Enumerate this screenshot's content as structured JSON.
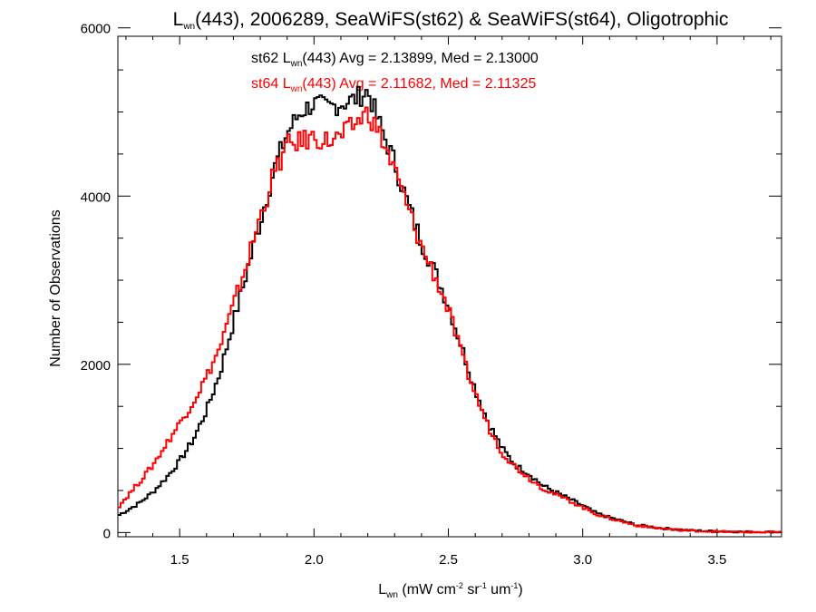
{
  "chart_data": {
    "type": "line",
    "step": true,
    "title": {
      "pre": "L",
      "sub": "wn",
      "post": "(443), 2006289, SeaWiFS(st62) & SeaWiFS(st64), Oligotrophic"
    },
    "ylabel": "Number of Observations",
    "xlabel": {
      "pre": "L",
      "sub": "wn",
      "mid1": " (mW cm",
      "sup1": "-2",
      "mid2": " sr",
      "sup2": "-1",
      "mid3": " um",
      "sup3": "-1",
      "post": ")"
    },
    "xlim": [
      1.27,
      3.74
    ],
    "ylim": [
      -50,
      5900
    ],
    "x_ticks": [
      {
        "value": 1.5,
        "label": "1.5"
      },
      {
        "value": 2.0,
        "label": "2.0"
      },
      {
        "value": 2.5,
        "label": "2.5"
      },
      {
        "value": 3.0,
        "label": "3.0"
      },
      {
        "value": 3.5,
        "label": "3.5"
      }
    ],
    "y_ticks": [
      {
        "value": 0,
        "label": "0"
      },
      {
        "value": 2000,
        "label": "2000"
      },
      {
        "value": 4000,
        "label": "4000"
      },
      {
        "value": 6000,
        "label": "6000"
      }
    ],
    "grid": false,
    "annotations": [
      {
        "pre": "st62 L",
        "sub": "wn",
        "post": "(443) Avg = 2.13899, Med = 2.13000",
        "color": "#000000"
      },
      {
        "pre": "st64 L",
        "sub": "wn",
        "post": "(443) Avg = 2.11682, Med = 2.11325",
        "color": "#ff0000"
      }
    ],
    "series": [
      {
        "color": "#000000",
        "x": [
          1.27,
          1.35,
          1.4,
          1.45,
          1.5,
          1.55,
          1.6,
          1.65,
          1.7,
          1.75,
          1.8,
          1.85,
          1.9,
          1.95,
          2.0,
          2.05,
          2.1,
          2.15,
          2.2,
          2.25,
          2.3,
          2.35,
          2.4,
          2.45,
          2.5,
          2.55,
          2.6,
          2.65,
          2.7,
          2.75,
          2.8,
          2.85,
          2.9,
          2.95,
          3.0,
          3.05,
          3.1,
          3.2,
          3.3,
          3.4,
          3.5,
          3.6,
          3.74
        ],
        "y": [
          200,
          350,
          480,
          650,
          850,
          1100,
          1450,
          1900,
          2500,
          3100,
          3700,
          4300,
          4750,
          5000,
          5100,
          5050,
          5100,
          5150,
          5250,
          4800,
          4400,
          3900,
          3450,
          3100,
          2700,
          2200,
          1700,
          1300,
          1000,
          800,
          700,
          560,
          480,
          400,
          320,
          230,
          180,
          90,
          50,
          25,
          15,
          8,
          5
        ]
      },
      {
        "color": "#ff0000",
        "x": [
          1.27,
          1.35,
          1.4,
          1.45,
          1.5,
          1.55,
          1.6,
          1.65,
          1.7,
          1.75,
          1.8,
          1.85,
          1.9,
          1.95,
          2.0,
          2.05,
          2.1,
          2.15,
          2.2,
          2.25,
          2.3,
          2.35,
          2.4,
          2.45,
          2.5,
          2.55,
          2.6,
          2.65,
          2.7,
          2.75,
          2.8,
          2.85,
          2.9,
          2.95,
          3.0,
          3.05,
          3.1,
          3.2,
          3.3,
          3.4,
          3.5,
          3.6,
          3.74
        ],
        "y": [
          300,
          600,
          800,
          1050,
          1300,
          1550,
          1850,
          2200,
          2700,
          3200,
          3750,
          4250,
          4600,
          4650,
          4700,
          4650,
          4700,
          4850,
          5000,
          4700,
          4300,
          3850,
          3400,
          3050,
          2650,
          2100,
          1650,
          1250,
          950,
          780,
          650,
          530,
          450,
          380,
          300,
          220,
          170,
          85,
          45,
          22,
          12,
          6,
          4
        ]
      }
    ]
  }
}
